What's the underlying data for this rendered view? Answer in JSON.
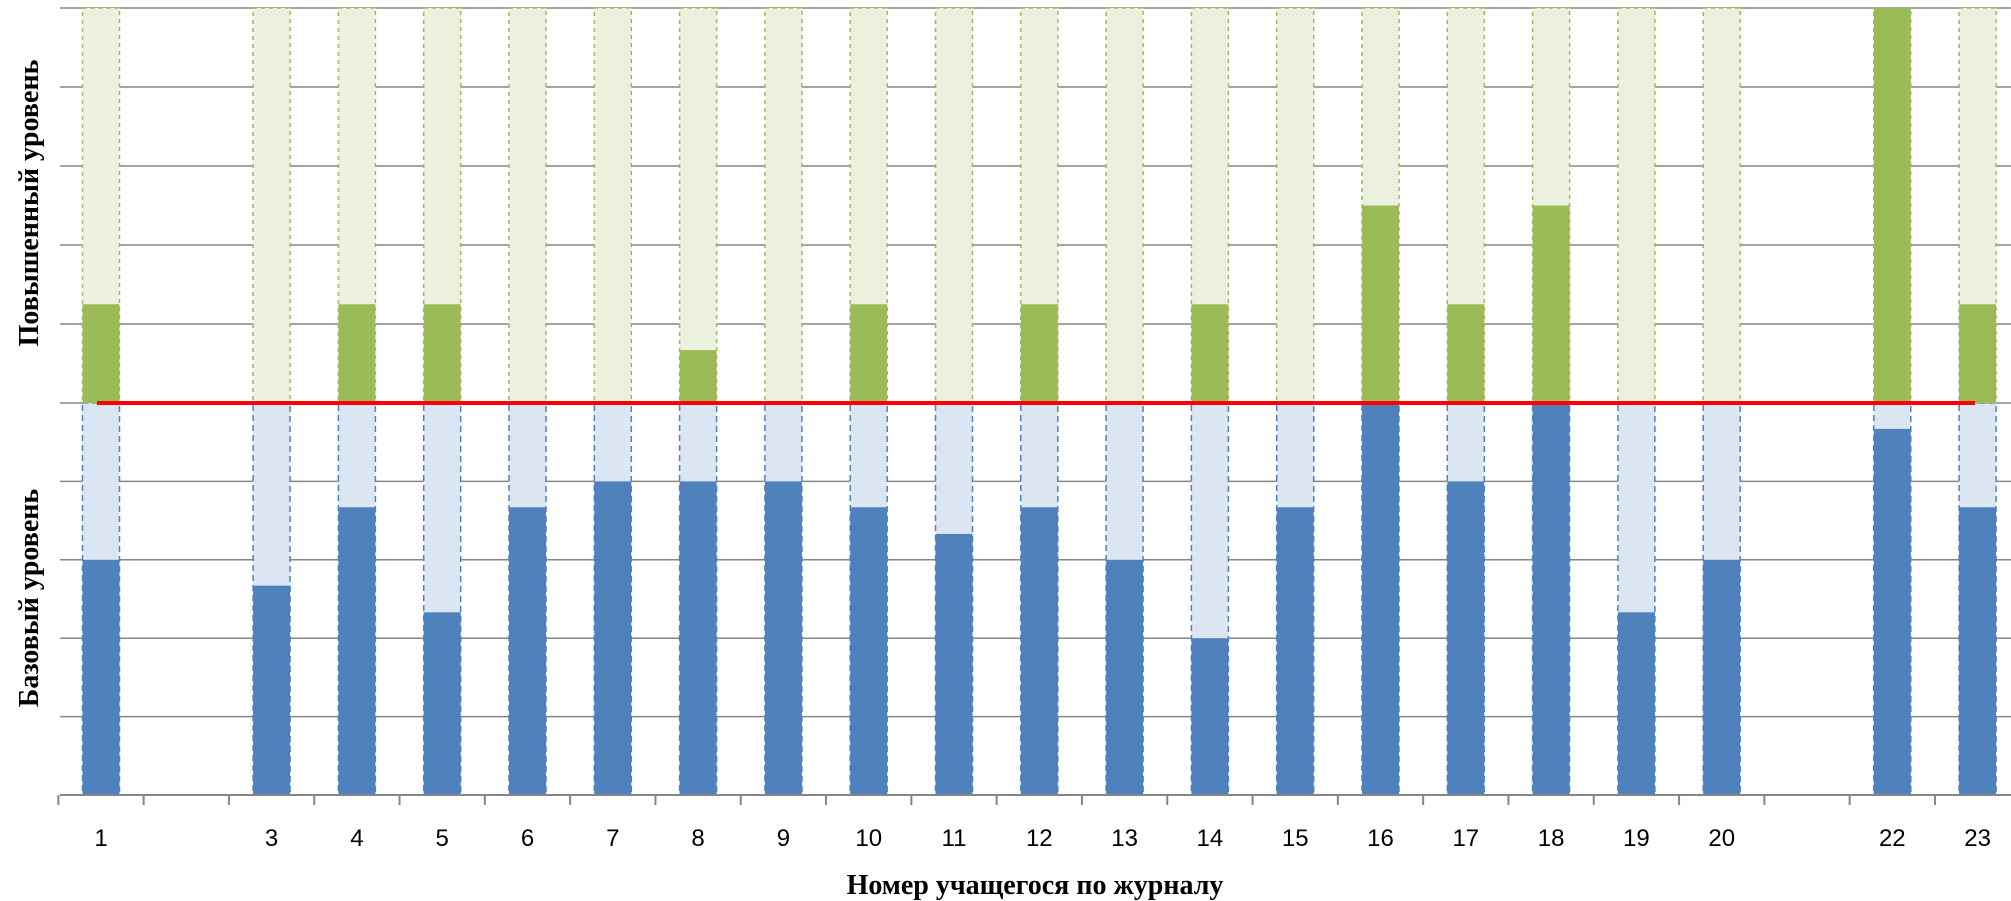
{
  "chart_data": {
    "type": "bar",
    "categories": [
      "1",
      "",
      "3",
      "4",
      "5",
      "6",
      "7",
      "8",
      "9",
      "10",
      "11",
      "12",
      "13",
      "14",
      "15",
      "16",
      "17",
      "18",
      "19",
      "20",
      "",
      "22",
      "23"
    ],
    "xlabel": "Номер учащегося по журналу",
    "ylabel_lower": "Базовый уровень",
    "ylabel_upper": "Повышенный уровень",
    "lower_max": 5,
    "upper_max": 5,
    "series": [
      {
        "values": [
          3,
          null,
          2.67,
          3.67,
          2.33,
          3.67,
          4,
          4,
          4,
          3.67,
          3.33,
          3.67,
          3,
          2,
          3.67,
          5,
          4,
          5,
          2.33,
          3,
          null,
          4.67,
          3.67
        ]
      },
      {
        "values": [
          1.25,
          null,
          0,
          1.25,
          1.25,
          0,
          0,
          0.67,
          0,
          1.25,
          0,
          1.25,
          0,
          1.25,
          0,
          2.5,
          1.25,
          2.5,
          0,
          0,
          null,
          5,
          1.25
        ]
      }
    ],
    "colors": {
      "lower_fill": "#4f81bd",
      "lower_bg": "#dce6f2",
      "upper_fill": "#9bbb59",
      "upper_bg": "#ebf1de",
      "threshold": "#ff0000",
      "grid": "#868686"
    },
    "grid": true
  }
}
